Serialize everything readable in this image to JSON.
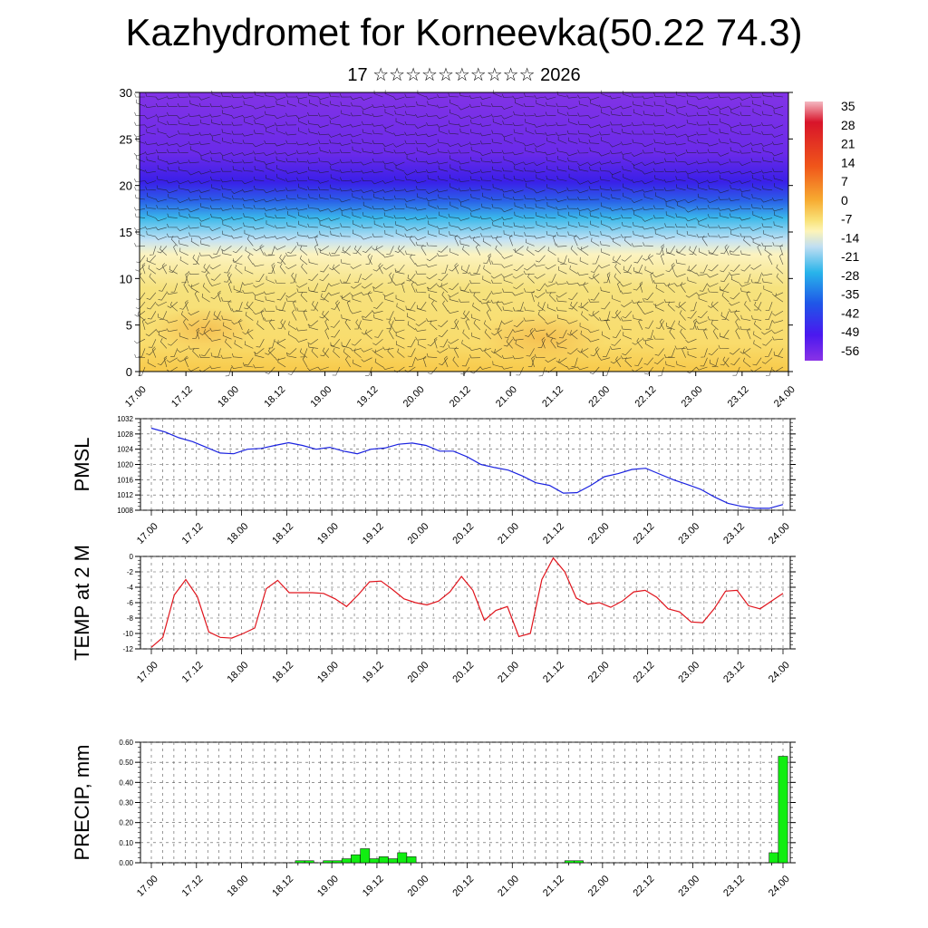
{
  "header": {
    "title": "Kazhydromet for Korneevka(50.22 74.3)",
    "subtitle": "17 ☆☆☆☆☆☆☆☆☆☆ 2026"
  },
  "chart_data": [
    {
      "type": "heatmap",
      "title": "",
      "x_tick_labels": [
        "17.00",
        "17.12",
        "18.00",
        "18.12",
        "19.00",
        "19.12",
        "20.00",
        "20.12",
        "21.00",
        "21.12",
        "22.00",
        "22.12",
        "23.00",
        "23.12",
        "24.00"
      ],
      "y_ticks": [
        0,
        5,
        10,
        15,
        20,
        25,
        30
      ],
      "ylim": [
        0,
        30
      ],
      "colorbar_labels": [
        "35",
        "28",
        "21",
        "14",
        "7",
        "0",
        "-7",
        "-14",
        "-21",
        "-28",
        "-35",
        "-42",
        "-49",
        "-56"
      ],
      "color_stops": [
        "#f4b9c2",
        "#d8142a",
        "#f0561a",
        "#f7ab31",
        "#f9e37a",
        "#fdf4b8",
        "#c0def2",
        "#28b4ea",
        "#1f56e8",
        "#4a18ef",
        "#8a32e6"
      ],
      "overlay": "wind barbs"
    },
    {
      "type": "line",
      "ylabel": "PMSL",
      "ylim": [
        1008,
        1032
      ],
      "y_ticks": [
        1008,
        1012,
        1016,
        1020,
        1024,
        1028,
        1032
      ],
      "x_tick_labels": [
        "17.00",
        "17.12",
        "18.00",
        "18.12",
        "19.00",
        "19.12",
        "20.00",
        "20.12",
        "21.00",
        "21.12",
        "22.00",
        "22.12",
        "23.00",
        "23.12",
        "24.00"
      ],
      "color": "#1a22e0",
      "values": [
        1029.5,
        1028.5,
        1027,
        1026,
        1024.5,
        1023,
        1022.8,
        1024,
        1024.2,
        1025,
        1025.7,
        1025,
        1024,
        1024.5,
        1023.5,
        1022.8,
        1024,
        1024.3,
        1025.3,
        1025.6,
        1025,
        1023.5,
        1023.5,
        1022,
        1020,
        1019.2,
        1018.5,
        1017,
        1015.2,
        1014.5,
        1012.5,
        1012.6,
        1014.5,
        1016.8,
        1017.6,
        1018.7,
        1019,
        1017.5,
        1016,
        1014.8,
        1013.5,
        1011.5,
        1009.8,
        1009,
        1008.5,
        1008.5,
        1009.5
      ]
    },
    {
      "type": "line",
      "ylabel": "TEMP at 2 M",
      "ylim": [
        -12,
        0
      ],
      "y_ticks": [
        0,
        -2,
        -4,
        -6,
        -8,
        -10,
        -12
      ],
      "x_tick_labels": [
        "17.00",
        "17.12",
        "18.00",
        "18.12",
        "19.00",
        "19.12",
        "20.00",
        "20.12",
        "21.00",
        "21.12",
        "22.00",
        "22.12",
        "23.00",
        "23.12",
        "24.00"
      ],
      "color": "#e0141c",
      "values": [
        -11.8,
        -10.5,
        -5,
        -3,
        -5.2,
        -9.8,
        -10.5,
        -10.6,
        -10,
        -9.3,
        -4.2,
        -3.1,
        -4.7,
        -4.7,
        -4.7,
        -4.8,
        -5.5,
        -6.5,
        -5,
        -3.3,
        -3.2,
        -4.3,
        -5.5,
        -6,
        -6.3,
        -5.8,
        -4.6,
        -2.6,
        -4.4,
        -8.3,
        -7,
        -6.5,
        -10.4,
        -10,
        -3,
        -0.2,
        -2,
        -5.4,
        -6.2,
        -6,
        -6.6,
        -5.8,
        -4.6,
        -4.4,
        -5.3,
        -6.8,
        -7.2,
        -8.5,
        -8.6,
        -6.8,
        -4.5,
        -4.4,
        -6.4,
        -6.8,
        -5.8,
        -4.8
      ]
    },
    {
      "type": "bar",
      "ylabel": "PRECIP, mm",
      "ylim": [
        0,
        0.6
      ],
      "y_ticks": [
        "0.00",
        "0.10",
        "0.20",
        "0.30",
        "0.40",
        "0.50",
        "0.60"
      ],
      "x_tick_labels": [
        "17.00",
        "17.12",
        "18.00",
        "18.12",
        "19.00",
        "19.12",
        "20.00",
        "20.12",
        "21.00",
        "21.12",
        "22.00",
        "22.12",
        "23.00",
        "23.12",
        "24.00"
      ],
      "color": "#11ee11",
      "values": [
        0,
        0,
        0,
        0,
        0,
        0,
        0,
        0,
        0,
        0,
        0,
        0,
        0,
        0,
        0,
        0,
        0.01,
        0.01,
        0,
        0.01,
        0.01,
        0.02,
        0.04,
        0.07,
        0.02,
        0.03,
        0.02,
        0.05,
        0.03,
        0,
        0,
        0,
        0,
        0,
        0,
        0,
        0,
        0,
        0,
        0,
        0,
        0,
        0,
        0,
        0,
        0.01,
        0.01,
        0,
        0,
        0,
        0,
        0,
        0,
        0,
        0,
        0,
        0,
        0,
        0,
        0,
        0,
        0,
        0,
        0,
        0,
        0,
        0,
        0.05,
        0.53
      ]
    }
  ]
}
